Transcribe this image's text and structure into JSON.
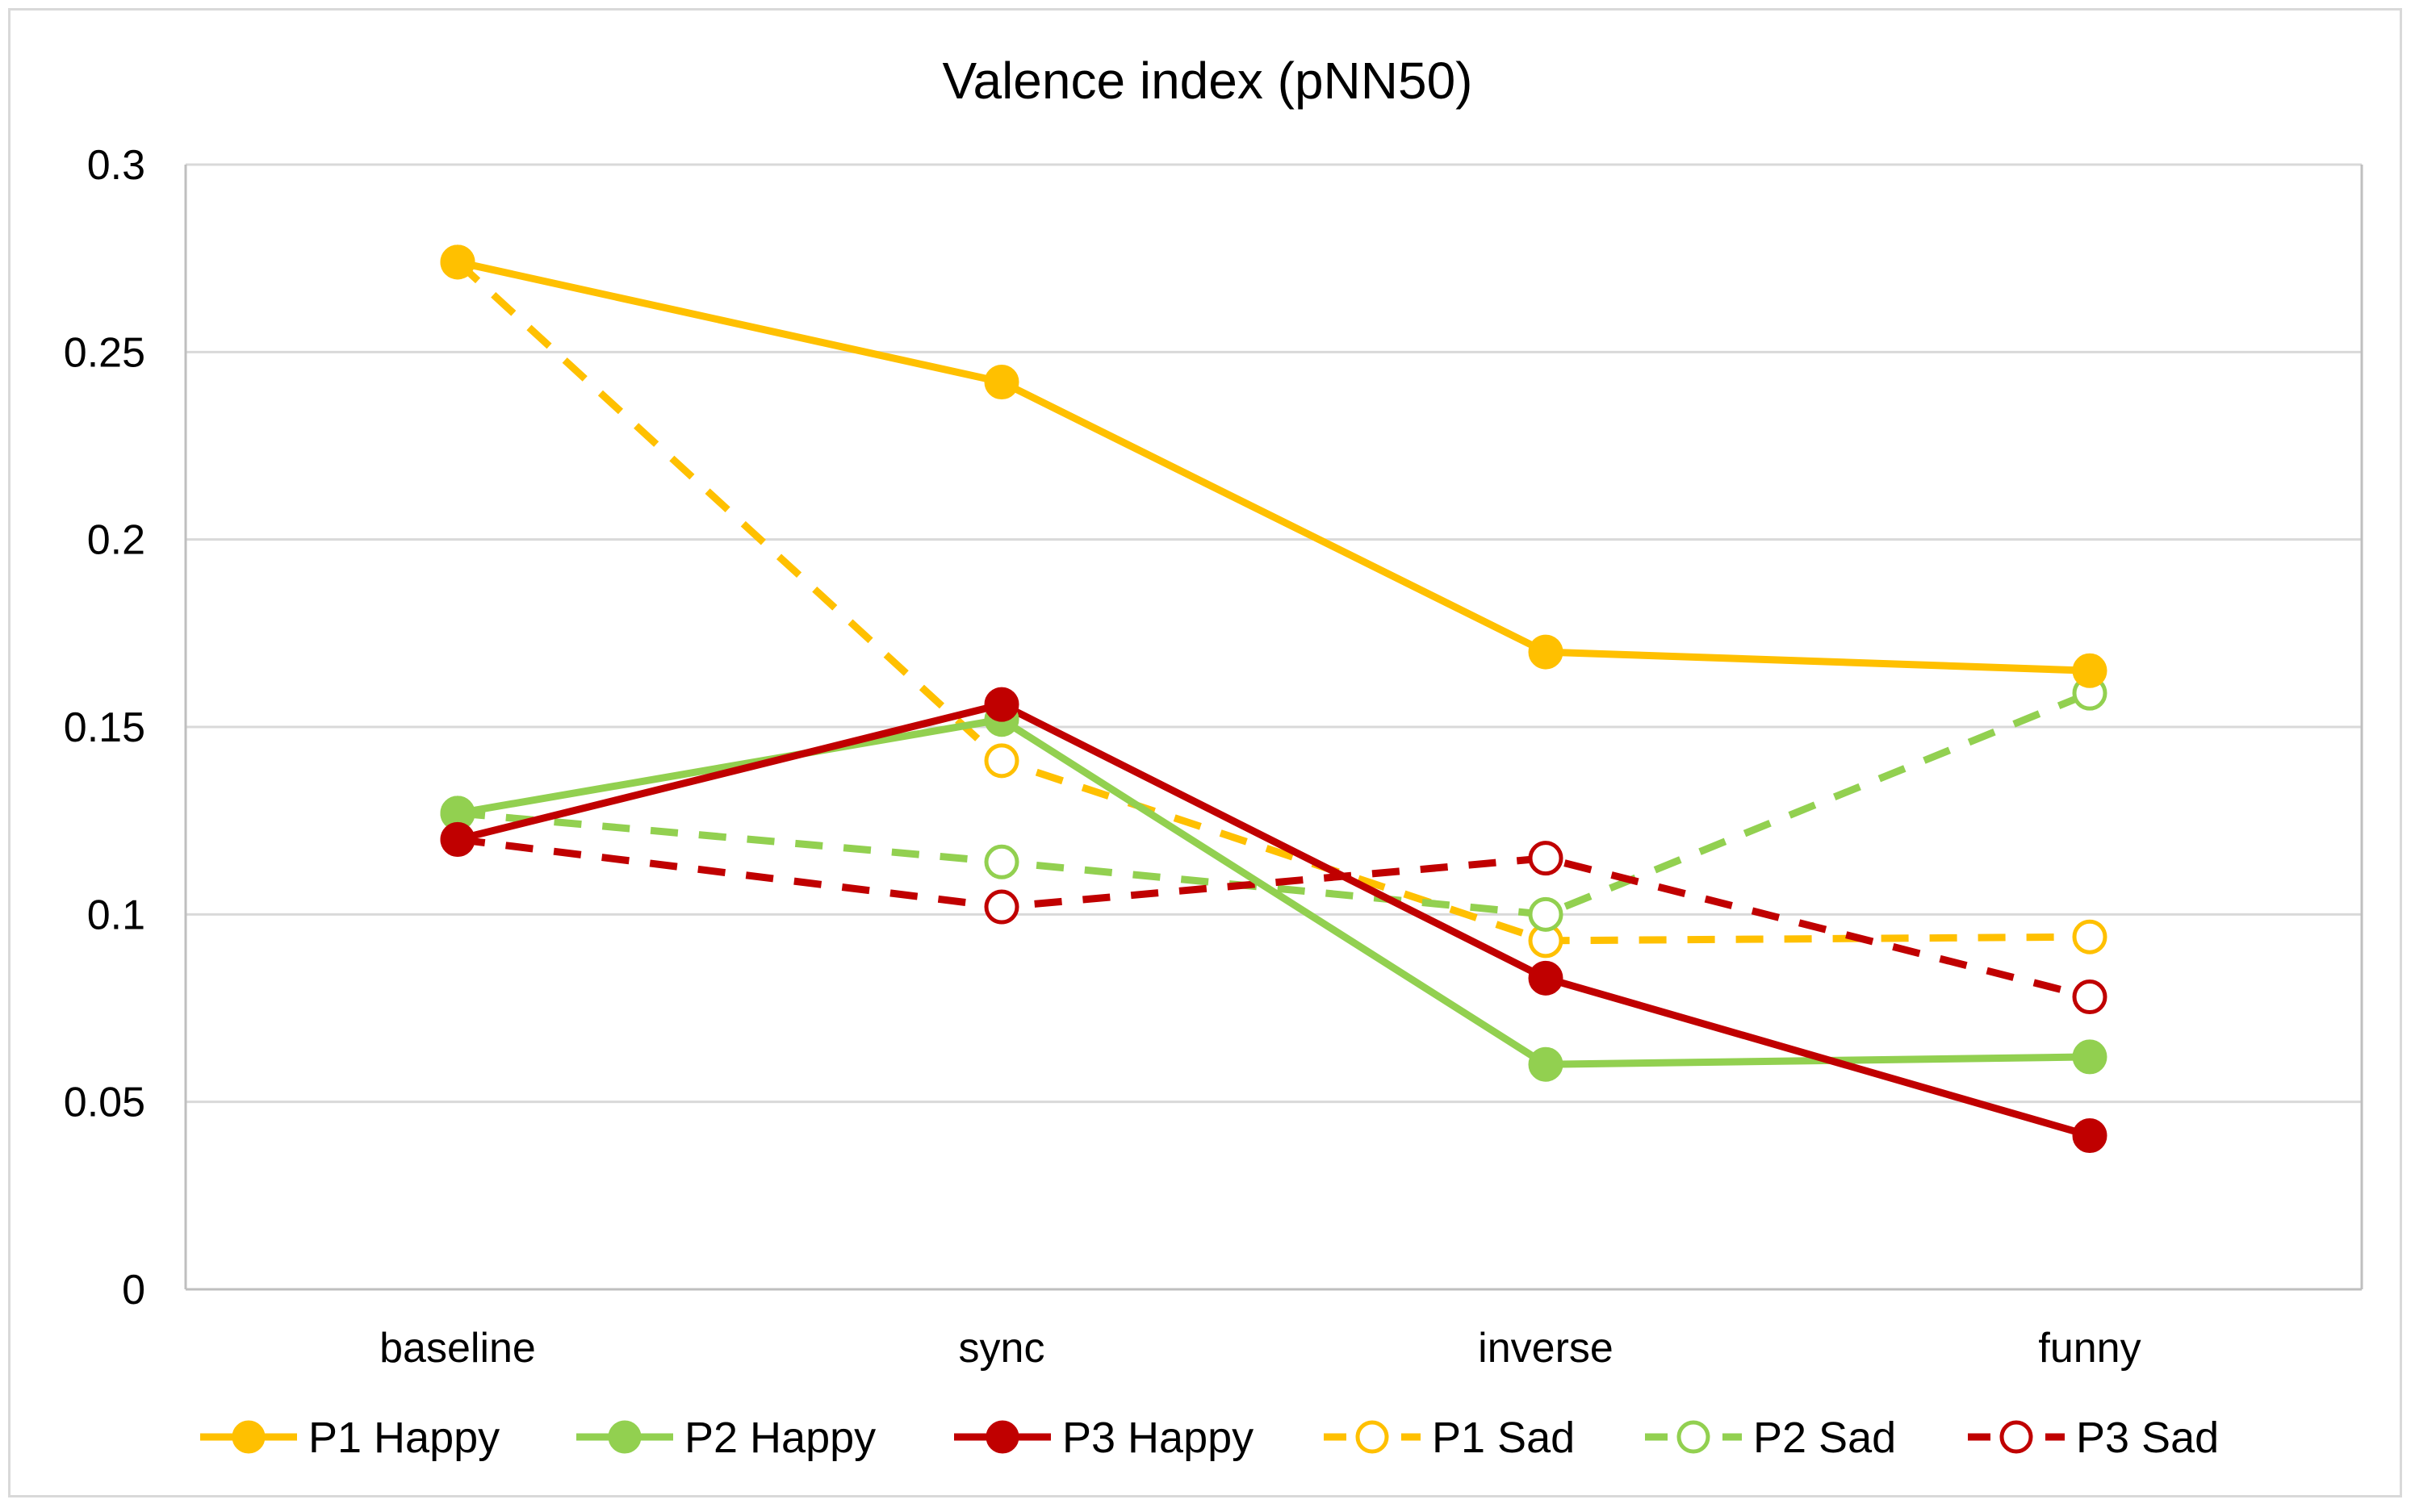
{
  "chart_data": {
    "type": "line",
    "title": "Valence index (pNN50)",
    "xlabel": "",
    "ylabel": "",
    "categories": [
      "baseline",
      "sync",
      "inverse",
      "funny"
    ],
    "ylim": [
      0,
      0.3
    ],
    "yticks": [
      0,
      0.05,
      0.1,
      0.15,
      0.2,
      0.25,
      0.3
    ],
    "ytick_labels": [
      "0",
      "0.05",
      "0.1",
      "0.15",
      "0.2",
      "0.25",
      "0.3"
    ],
    "grid": true,
    "legend_position": "bottom",
    "series": [
      {
        "name": "P1 Happy",
        "values": [
          0.274,
          0.242,
          0.17,
          0.165
        ],
        "color": "#ffc000",
        "style": "solid",
        "marker": "filled"
      },
      {
        "name": "P2 Happy",
        "values": [
          0.127,
          0.152,
          0.06,
          0.062
        ],
        "color": "#92d050",
        "style": "solid",
        "marker": "filled"
      },
      {
        "name": "P3 Happy",
        "values": [
          0.12,
          0.156,
          0.083,
          0.041
        ],
        "color": "#c00000",
        "style": "solid",
        "marker": "filled"
      },
      {
        "name": "P1 Sad",
        "values": [
          0.274,
          0.141,
          0.093,
          0.094
        ],
        "color": "#ffc000",
        "style": "dashed",
        "marker": "hollow"
      },
      {
        "name": "P2 Sad",
        "values": [
          0.127,
          0.114,
          0.1,
          0.159
        ],
        "color": "#92d050",
        "style": "dashed",
        "marker": "hollow"
      },
      {
        "name": "P3 Sad",
        "values": [
          0.12,
          0.102,
          0.115,
          0.078
        ],
        "color": "#c00000",
        "style": "dashed",
        "marker": "hollow"
      }
    ]
  }
}
